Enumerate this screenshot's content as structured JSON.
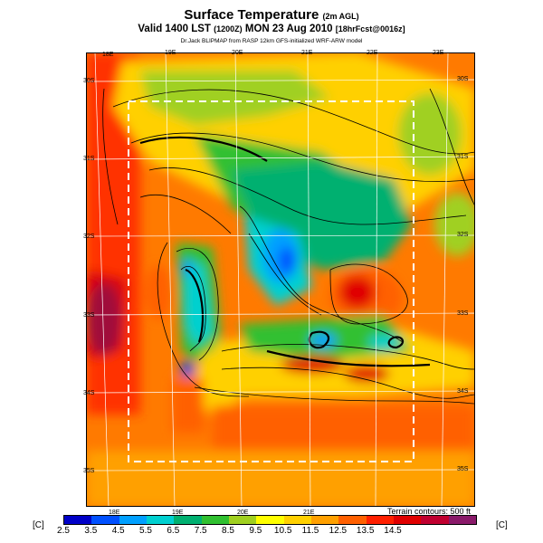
{
  "title": {
    "main": "Surface Temperature",
    "main_note": "(2m AGL)",
    "valid": "Valid 1400 LST",
    "valid_utc": "(1200Z)",
    "valid_date": "MON 23 Aug 2010",
    "fcst": "[18hrFcst@0016z]",
    "credit": "Dr.Jack BLIPMAP from RASP 12km GFS-initialized WRF-ARW model"
  },
  "map": {
    "lon_top": [
      "18E",
      "19E",
      "20E",
      "21E",
      "22E",
      "23E"
    ],
    "lon_bottom": [
      "18E",
      "19E",
      "20E",
      "21E"
    ],
    "lat_left": [
      "30S",
      "31S",
      "32S",
      "33S",
      "34S",
      "35S"
    ],
    "lat_right": [
      "30S",
      "31S",
      "32S",
      "33S",
      "34S",
      "35S"
    ],
    "terrain_note": "Terrain contours: 500 ft"
  },
  "colorbar": {
    "unit_left": "[C]",
    "unit_right": "[C]",
    "ticks": [
      "2.5",
      "3.5",
      "4.5",
      "5.5",
      "6.5",
      "7.5",
      "8.5",
      "9.5",
      "10.5",
      "11.5",
      "12.5",
      "13.5",
      "14.5"
    ],
    "colors": [
      "#0000c8",
      "#0050ff",
      "#00a0ff",
      "#00d0d0",
      "#00b070",
      "#30c030",
      "#a0d020",
      "#ffff00",
      "#ffd000",
      "#ffa000",
      "#ff6000",
      "#ff2000",
      "#e00000",
      "#c00030",
      "#8a1a6a"
    ]
  }
}
